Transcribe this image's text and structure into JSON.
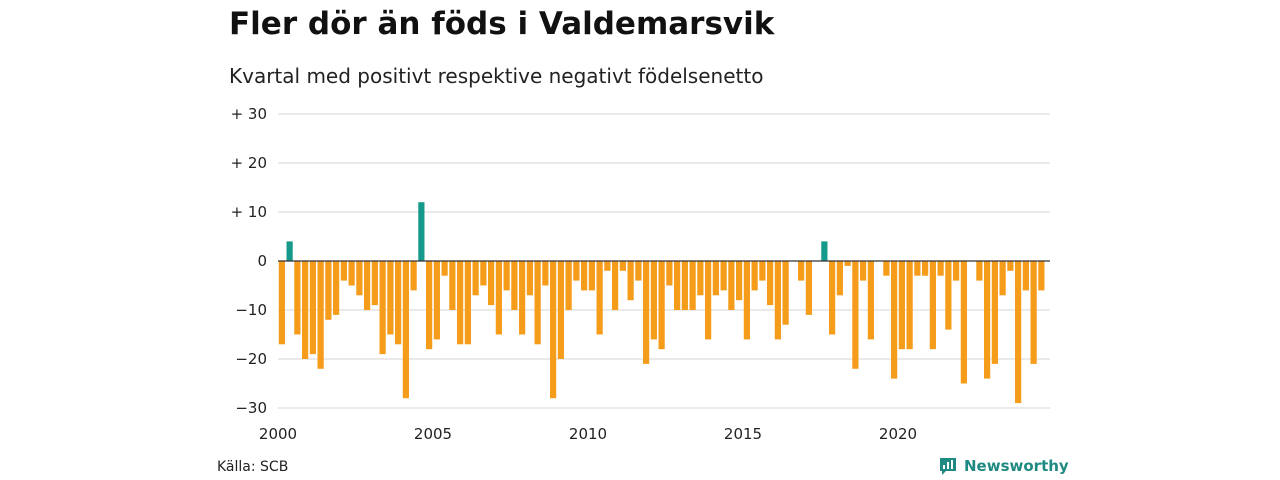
{
  "title": "Fler dör än föds i Valdemarsvik",
  "subtitle": "Kvartal med positivt respektive negativt födelsenetto",
  "source": "Källa: SCB",
  "brand": {
    "name": "Newsworthy",
    "icon": "newsworthy-logo-icon"
  },
  "colors": {
    "positive": "#14998a",
    "negative": "#f59c1a",
    "grid": "#dddddd",
    "axis": "#333333"
  },
  "chart_data": {
    "type": "bar",
    "x_label": "",
    "y_label": "",
    "ylim": [
      -30,
      30
    ],
    "y_ticks": [
      {
        "value": 30,
        "label": "+ 30"
      },
      {
        "value": 20,
        "label": "+ 20"
      },
      {
        "value": 10,
        "label": "+ 10"
      },
      {
        "value": 0,
        "label": "0"
      },
      {
        "value": -10,
        "label": "−10"
      },
      {
        "value": -20,
        "label": "−20"
      },
      {
        "value": -30,
        "label": "−30"
      }
    ],
    "x_ticks": [
      "2000",
      "2005",
      "2010",
      "2015",
      "2020"
    ],
    "grid": true,
    "legend": "none",
    "start_year": 2000,
    "periods_per_year": 4,
    "values": [
      -17,
      4,
      -15,
      -20,
      -19,
      -22,
      -12,
      -11,
      -4,
      -5,
      -7,
      -10,
      -9,
      -19,
      -15,
      -17,
      -28,
      -6,
      12,
      -18,
      -16,
      -3,
      -10,
      -17,
      -17,
      -7,
      -5,
      -9,
      -15,
      -6,
      -10,
      -15,
      -7,
      -17,
      -5,
      -28,
      -20,
      -10,
      -4,
      -6,
      -6,
      -15,
      -2,
      -10,
      -2,
      -8,
      -4,
      -21,
      -16,
      -18,
      -5,
      -10,
      -10,
      -10,
      -7,
      -16,
      -7,
      -6,
      -10,
      -8,
      -16,
      -6,
      -4,
      -9,
      -16,
      -13,
      0,
      -4,
      -11,
      0,
      4,
      -15,
      -7,
      -1,
      -22,
      -4,
      -16,
      0,
      -3,
      -24,
      -18,
      -18,
      -3,
      -3,
      -18,
      -3,
      -14,
      -4,
      -25,
      0,
      -4,
      -24,
      -21,
      -7,
      -2,
      -29,
      -6,
      -21,
      -6
    ]
  }
}
